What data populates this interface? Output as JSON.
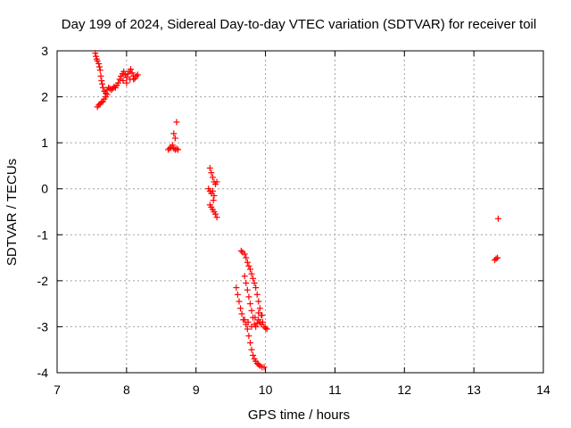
{
  "chart_data": {
    "type": "scatter",
    "title": "Day 199 of 2024, Sidereal Day-to-day VTEC variation (SDTVAR) for receiver toil",
    "xlabel": "GPS time / hours",
    "ylabel": "SDTVAR / TECUs",
    "xlim": [
      7,
      14
    ],
    "ylim": [
      -4,
      3
    ],
    "xticks": [
      "7",
      "8",
      "9",
      "10",
      "11",
      "12",
      "13",
      "14"
    ],
    "yticks": [
      "-4",
      "-3",
      "-2",
      "-1",
      "0",
      "1",
      "2",
      "3"
    ],
    "grid": true,
    "marker": "+",
    "color": "#ff0000",
    "series": [
      {
        "name": "SDTVAR",
        "points": [
          [
            7.55,
            2.95
          ],
          [
            7.56,
            2.88
          ],
          [
            7.57,
            2.82
          ],
          [
            7.58,
            2.78
          ],
          [
            7.6,
            2.72
          ],
          [
            7.61,
            2.65
          ],
          [
            7.62,
            2.58
          ],
          [
            7.63,
            2.45
          ],
          [
            7.64,
            2.35
          ],
          [
            7.65,
            2.28
          ],
          [
            7.66,
            2.2
          ],
          [
            7.68,
            2.12
          ],
          [
            7.7,
            2.08
          ],
          [
            7.72,
            2.15
          ],
          [
            7.74,
            2.2
          ],
          [
            7.76,
            2.18
          ],
          [
            7.78,
            2.15
          ],
          [
            7.8,
            2.18
          ],
          [
            7.82,
            2.22
          ],
          [
            7.84,
            2.2
          ],
          [
            7.86,
            2.25
          ],
          [
            7.88,
            2.3
          ],
          [
            7.9,
            2.38
          ],
          [
            7.92,
            2.45
          ],
          [
            7.94,
            2.5
          ],
          [
            7.96,
            2.55
          ],
          [
            7.98,
            2.48
          ],
          [
            8.0,
            2.42
          ],
          [
            8.02,
            2.5
          ],
          [
            8.04,
            2.55
          ],
          [
            8.06,
            2.6
          ],
          [
            8.08,
            2.52
          ],
          [
            8.1,
            2.45
          ],
          [
            8.12,
            2.4
          ],
          [
            8.14,
            2.45
          ],
          [
            8.16,
            2.48
          ],
          [
            7.58,
            1.78
          ],
          [
            7.6,
            1.82
          ],
          [
            7.62,
            1.85
          ],
          [
            7.64,
            1.88
          ],
          [
            7.66,
            1.9
          ],
          [
            7.68,
            1.95
          ],
          [
            7.7,
            2.0
          ],
          [
            7.72,
            2.05
          ],
          [
            7.95,
            2.35
          ],
          [
            8.05,
            2.38
          ],
          [
            8.1,
            2.38
          ],
          [
            8.0,
            2.3
          ],
          [
            8.6,
            0.85
          ],
          [
            8.62,
            0.88
          ],
          [
            8.64,
            0.9
          ],
          [
            8.66,
            0.95
          ],
          [
            8.68,
            0.88
          ],
          [
            8.7,
            0.85
          ],
          [
            8.72,
            0.87
          ],
          [
            8.74,
            0.85
          ],
          [
            8.68,
            1.2
          ],
          [
            8.7,
            1.1
          ],
          [
            8.72,
            1.45
          ],
          [
            9.2,
            0.45
          ],
          [
            9.22,
            0.35
          ],
          [
            9.24,
            0.25
          ],
          [
            9.26,
            0.15
          ],
          [
            9.28,
            0.1
          ],
          [
            9.3,
            0.15
          ],
          [
            9.18,
            0.0
          ],
          [
            9.2,
            -0.05
          ],
          [
            9.22,
            -0.1
          ],
          [
            9.24,
            -0.05
          ],
          [
            9.26,
            -0.15
          ],
          [
            9.25,
            -0.25
          ],
          [
            9.2,
            -0.35
          ],
          [
            9.22,
            -0.4
          ],
          [
            9.24,
            -0.45
          ],
          [
            9.26,
            -0.5
          ],
          [
            9.28,
            -0.55
          ],
          [
            9.3,
            -0.62
          ],
          [
            9.65,
            -1.35
          ],
          [
            9.67,
            -1.38
          ],
          [
            9.7,
            -1.42
          ],
          [
            9.72,
            -1.5
          ],
          [
            9.74,
            -1.6
          ],
          [
            9.76,
            -1.68
          ],
          [
            9.78,
            -1.75
          ],
          [
            9.8,
            -1.85
          ],
          [
            9.82,
            -1.95
          ],
          [
            9.84,
            -2.05
          ],
          [
            9.86,
            -2.15
          ],
          [
            9.88,
            -2.3
          ],
          [
            9.9,
            -2.45
          ],
          [
            9.92,
            -2.6
          ],
          [
            9.94,
            -2.75
          ],
          [
            9.96,
            -2.9
          ],
          [
            9.98,
            -3.0
          ],
          [
            10.0,
            -3.03
          ],
          [
            10.02,
            -3.05
          ],
          [
            9.7,
            -1.9
          ],
          [
            9.72,
            -2.05
          ],
          [
            9.74,
            -2.2
          ],
          [
            9.76,
            -2.35
          ],
          [
            9.78,
            -2.5
          ],
          [
            9.8,
            -2.65
          ],
          [
            9.82,
            -2.8
          ],
          [
            9.84,
            -2.95
          ],
          [
            9.86,
            -3.0
          ],
          [
            9.88,
            -2.92
          ],
          [
            9.9,
            -2.85
          ],
          [
            9.92,
            -2.9
          ],
          [
            9.94,
            -2.95
          ],
          [
            9.58,
            -2.15
          ],
          [
            9.6,
            -2.3
          ],
          [
            9.62,
            -2.45
          ],
          [
            9.64,
            -2.6
          ],
          [
            9.66,
            -2.72
          ],
          [
            9.68,
            -2.85
          ],
          [
            9.7,
            -2.85
          ],
          [
            9.72,
            -2.95
          ],
          [
            9.74,
            -3.05
          ],
          [
            9.76,
            -3.2
          ],
          [
            9.78,
            -3.35
          ],
          [
            9.8,
            -3.5
          ],
          [
            9.82,
            -3.62
          ],
          [
            9.84,
            -3.7
          ],
          [
            9.86,
            -3.75
          ],
          [
            9.88,
            -3.8
          ],
          [
            9.9,
            -3.82
          ],
          [
            9.92,
            -3.85
          ],
          [
            9.95,
            -3.88
          ],
          [
            9.98,
            -3.88
          ],
          [
            9.75,
            -2.9
          ],
          [
            9.8,
            -3.0
          ],
          [
            9.85,
            -2.8
          ],
          [
            9.9,
            -2.7
          ],
          [
            9.95,
            -2.75
          ],
          [
            13.3,
            -1.55
          ],
          [
            13.32,
            -1.52
          ],
          [
            13.34,
            -1.5
          ],
          [
            13.35,
            -0.65
          ]
        ]
      }
    ]
  }
}
